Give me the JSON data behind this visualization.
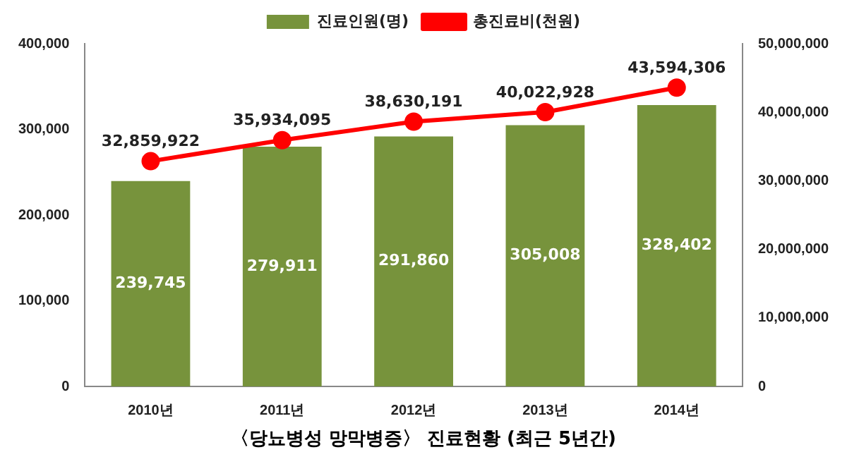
{
  "chart_data": {
    "type": "bar",
    "title": "〈당뇨병성 망막병증〉 진료현황 (최근 5년간)",
    "categories": [
      "2010년",
      "2011년",
      "2012년",
      "2013년",
      "2014년"
    ],
    "series": [
      {
        "name": "진료인원(명)",
        "color": "#77933c",
        "values": [
          239745,
          279911,
          291860,
          305008,
          328402
        ],
        "value_labels": [
          "239,745",
          "279,911",
          "291,860",
          "305,008",
          "328,402"
        ]
      },
      {
        "name": "총진료비(천원)",
        "color": "#ff0000",
        "type": "line",
        "axis": "y2",
        "marker": "circle",
        "values": [
          32859922,
          35934095,
          38630191,
          40022928,
          43594306
        ],
        "value_labels": [
          "32,859,922",
          "35,934,095",
          "38,630,191",
          "40,022,928",
          "43,594,306"
        ]
      }
    ],
    "ylim": [
      0,
      400000
    ],
    "yticks": [
      0,
      {
        "value": 100000,
        "label": "100,000"
      },
      {
        "value": 200000,
        "label": "200,000"
      },
      {
        "value": 300000,
        "label": "300,000"
      },
      {
        "value": 400000,
        "label": "400,000"
      }
    ],
    "y2lim": [
      0,
      50000000
    ],
    "y2ticks": [
      0,
      {
        "value": 10000000,
        "label": "10,000,000"
      },
      {
        "value": 20000000,
        "label": "20,000,000"
      },
      {
        "value": 30000000,
        "label": "30,000,000"
      },
      {
        "value": 40000000,
        "label": "40,000,000"
      },
      {
        "value": 50000000,
        "label": "50,000,000"
      }
    ],
    "legend": "top",
    "grid": false
  }
}
